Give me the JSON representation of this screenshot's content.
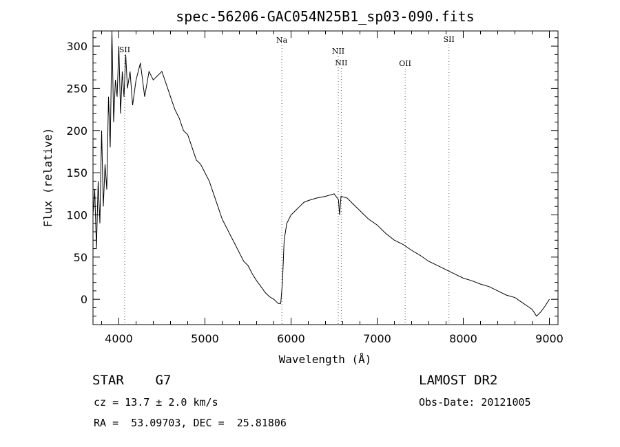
{
  "chart_data": {
    "type": "line",
    "title": "spec-56206-GAC054N25B1_sp03-090.fits",
    "xlabel": "Wavelength (Å)",
    "ylabel": "Flux (relative)",
    "xlim": [
      3700,
      9100
    ],
    "ylim": [
      -30,
      318
    ],
    "xticks": [
      4000,
      5000,
      6000,
      7000,
      8000,
      9000
    ],
    "yticks": [
      0,
      50,
      100,
      150,
      200,
      250,
      300
    ],
    "series": [
      {
        "x": [
          3700,
          3720,
          3740,
          3760,
          3780,
          3800,
          3820,
          3840,
          3860,
          3880,
          3900,
          3920,
          3940,
          3960,
          3980,
          4000,
          4020,
          4040,
          4060,
          4080,
          4100,
          4130,
          4160,
          4200,
          4250,
          4300,
          4350,
          4400,
          4450,
          4500,
          4550,
          4600,
          4650,
          4700,
          4750,
          4800,
          4850,
          4900,
          4950,
          5000,
          5050,
          5100,
          5150,
          5200,
          5250,
          5300,
          5350,
          5400,
          5450,
          5500,
          5550,
          5600,
          5650,
          5700,
          5750,
          5800,
          5850,
          5880,
          5900,
          5920,
          5950,
          6000,
          6050,
          6100,
          6150,
          6200,
          6300,
          6400,
          6500,
          6550,
          6563,
          6580,
          6650,
          6700,
          6800,
          6900,
          7000,
          7100,
          7200,
          7300,
          7400,
          7500,
          7600,
          7700,
          7800,
          7900,
          8000,
          8100,
          8200,
          8300,
          8400,
          8500,
          8600,
          8700,
          8800,
          8850,
          8900,
          8950,
          9000
        ],
        "y": [
          100,
          130,
          60,
          140,
          90,
          200,
          110,
          160,
          130,
          240,
          180,
          320,
          210,
          260,
          240,
          300,
          220,
          270,
          240,
          290,
          250,
          270,
          230,
          260,
          280,
          240,
          270,
          260,
          265,
          270,
          255,
          240,
          225,
          215,
          200,
          195,
          180,
          165,
          160,
          150,
          140,
          125,
          110,
          95,
          85,
          75,
          65,
          55,
          45,
          40,
          30,
          22,
          15,
          8,
          3,
          0,
          -5,
          -5,
          20,
          70,
          90,
          100,
          105,
          110,
          115,
          117,
          120,
          122,
          125,
          118,
          100,
          122,
          120,
          115,
          105,
          95,
          88,
          78,
          70,
          65,
          58,
          52,
          45,
          40,
          35,
          30,
          25,
          22,
          18,
          15,
          10,
          5,
          2,
          -5,
          -12,
          -20,
          -15,
          -8,
          0
        ]
      }
    ],
    "lines": [
      {
        "label": "SII",
        "x": 4068
      },
      {
        "label": "Na",
        "x": 5893
      },
      {
        "label": "NII",
        "x": 6548
      },
      {
        "label": "NII",
        "x": 6583
      },
      {
        "label": "OII",
        "x": 7325
      },
      {
        "label": "SII",
        "x": 7834
      }
    ]
  },
  "info": {
    "object": "STAR    G7",
    "survey": "LAMOST DR2",
    "cz": "cz = 13.7 ± 2.0 km/s",
    "obs_date": "Obs-Date: 20121005",
    "coords": "RA =  53.09703, DEC =  25.81806"
  }
}
